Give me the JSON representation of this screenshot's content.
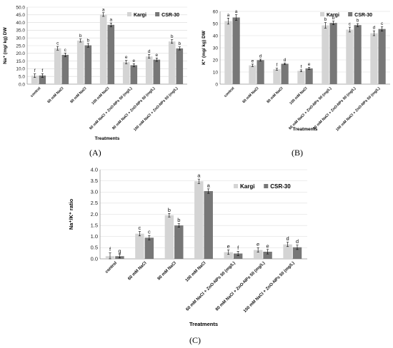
{
  "chart_data": [
    {
      "type": "bar",
      "panel_label": "(A)",
      "ylabel": "Na⁺ (mg/ kg) DW",
      "xlabel": "Treatments",
      "ylim": [
        0,
        50
      ],
      "yticks": [
        "0.0",
        "5.0",
        "10.0",
        "15.0",
        "20.0",
        "25.0",
        "30.0",
        "35.0",
        "40.0",
        "45.0",
        "50.0"
      ],
      "grid": true,
      "legend_position": "top-right",
      "categories": [
        "control",
        "60 mM NaCl",
        "80 mM NaCl",
        "100 mM NaCl",
        "60 mM NaCl + ZnO-NPs 50 (mg/L)",
        "80 mM NaCl + ZnO-NPs 50 (mg/L)",
        "100 mM NaCl + ZnO-NPs 50 (mg/L)"
      ],
      "series": [
        {
          "name": "Kargi",
          "color": "#d4d4d4",
          "values": [
            5.5,
            23.3,
            28.3,
            45.2,
            14.3,
            18.0,
            27.7
          ],
          "errors": [
            1.2,
            1.2,
            1.0,
            1.2,
            1.1,
            1.2,
            1.2
          ],
          "letters": [
            "f",
            "c",
            "b",
            "a",
            "e",
            "d",
            "b"
          ]
        },
        {
          "name": "CSR-30",
          "color": "#777777",
          "values": [
            5.6,
            19.0,
            25.2,
            38.5,
            12.3,
            15.9,
            23.2
          ],
          "errors": [
            1.2,
            1.2,
            1.2,
            1.2,
            1.0,
            1.1,
            1.0
          ],
          "letters": [
            "f",
            "c",
            "b",
            "a",
            "e",
            "e",
            "b"
          ]
        }
      ]
    },
    {
      "type": "bar",
      "panel_label": "(B)",
      "ylabel": "K⁺ (mg/ kg) DW",
      "xlabel": "Treatments",
      "ylim": [
        0,
        60
      ],
      "yticks": [
        "0",
        "10",
        "20",
        "30",
        "40",
        "50",
        "60"
      ],
      "grid": true,
      "legend_position": "top-right",
      "categories": [
        "control",
        "60 mM NaCl",
        "80 mM NaCl",
        "100 mM NaCl",
        "60 mM NaCl + ZnO-NPs 50 (mg/L)",
        "80 mM NaCl + ZnO-NPs 50 (mg/L)",
        "100 mM NaCl + ZnO-NPs 50 (mg/L)"
      ],
      "series": [
        {
          "name": "Kargi",
          "color": "#d4d4d4",
          "values": [
            52,
            15.5,
            12.3,
            11.0,
            48.5,
            45.0,
            42.0
          ],
          "errors": [
            2.5,
            1.0,
            0.8,
            0.8,
            2.3,
            2.0,
            2.0
          ],
          "letters": [
            "a",
            "e",
            "f",
            "f",
            "b",
            "c",
            "d"
          ]
        },
        {
          "name": "CSR-30",
          "color": "#777777",
          "values": [
            55,
            19.8,
            16.8,
            13.0,
            50.5,
            48.7,
            45.5
          ],
          "errors": [
            2.3,
            0.8,
            0.7,
            0.8,
            1.5,
            1.2,
            1.8
          ],
          "letters": [
            "a",
            "d",
            "d",
            "e",
            "b",
            "b",
            "c"
          ]
        }
      ]
    },
    {
      "type": "bar",
      "panel_label": "(C)",
      "ylabel": "Na⁺/K⁺ ratio",
      "xlabel": "Treatments",
      "ylim": [
        0,
        4
      ],
      "yticks": [
        "0.0",
        "0.5",
        "1.0",
        "1.5",
        "2.0",
        "2.5",
        "3.0",
        "3.5",
        "4.0"
      ],
      "grid": true,
      "legend_position": "top-right",
      "categories": [
        "control",
        "60 mM NaCl",
        "80 mM NaCl",
        "100 mM NaCl",
        "60 mM NaCl + ZnO-NPs 50 (mg/L)",
        "80 mM NaCl + ZnO-NPs 50 (mg/L)",
        "100 mM NaCl + ZnO-NPs 50 (mg/L)"
      ],
      "series": [
        {
          "name": "Kargi",
          "color": "#d4d4d4",
          "values": [
            0.12,
            1.13,
            1.96,
            3.48,
            0.3,
            0.4,
            0.65
          ],
          "errors": [
            0.15,
            0.1,
            0.08,
            0.1,
            0.1,
            0.1,
            0.1
          ],
          "letters": [
            "f",
            "c",
            "b",
            "a",
            "e",
            "e",
            "d"
          ]
        },
        {
          "name": "CSR-30",
          "color": "#777777",
          "values": [
            0.12,
            0.95,
            1.5,
            3.04,
            0.24,
            0.32,
            0.52
          ],
          "errors": [
            0.08,
            0.1,
            0.08,
            0.1,
            0.1,
            0.1,
            0.1
          ],
          "letters": [
            "g",
            "c",
            "b",
            "a",
            "f",
            "e",
            "d"
          ]
        }
      ]
    }
  ]
}
